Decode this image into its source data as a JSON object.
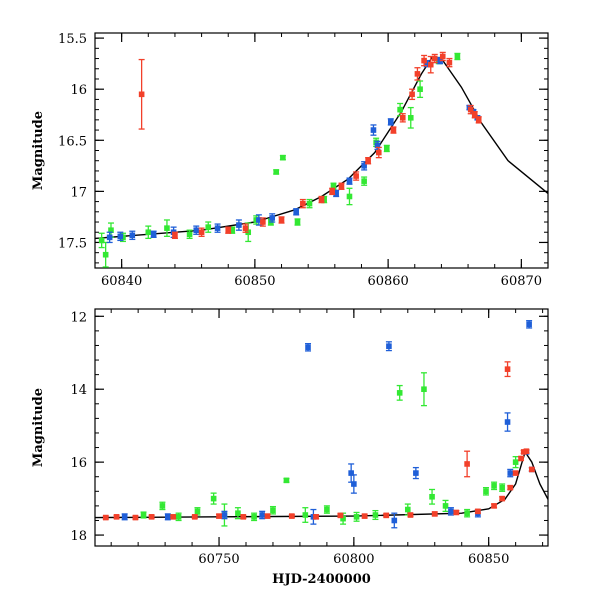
{
  "colors": {
    "green": "#33e833",
    "blue": "#1f5fd8",
    "red": "#f2402a",
    "model": "#000000"
  },
  "chart_data": [
    {
      "type": "scatter",
      "title": "",
      "xlabel": "",
      "ylabel": "Magnitude",
      "xlim": [
        60838,
        60872
      ],
      "ylim": [
        17.75,
        15.45
      ],
      "y_inverted": true,
      "xticks": [
        60840,
        60850,
        60860,
        60870
      ],
      "yticks": [
        15.5,
        16,
        16.5,
        17,
        17.5
      ],
      "xtick_labels": [
        "60840",
        "60850",
        "60860",
        "60870"
      ],
      "ytick_labels": [
        "15.5",
        "16",
        "16.5",
        "17",
        "17.5"
      ],
      "grid": false,
      "legend": "none",
      "model_curve": {
        "x": [
          60838,
          60842,
          60846,
          60850,
          60853,
          60855,
          60857,
          60859,
          60861,
          60862.5,
          60863.3,
          60864,
          60865.5,
          60867,
          60869,
          60872
        ],
        "y": [
          17.46,
          17.42,
          17.38,
          17.3,
          17.18,
          17.05,
          16.88,
          16.62,
          16.22,
          15.85,
          15.69,
          15.7,
          15.98,
          16.33,
          16.7,
          17.02
        ]
      },
      "series": [
        {
          "color": "green",
          "x": [
            60838.5,
            60838.8,
            60839.2,
            60840.1,
            60842,
            60843.4,
            60845.1,
            60846.5,
            60848.3,
            60849.5,
            60850.1,
            60851.2,
            60851.6,
            60852.1,
            60853.2,
            60854.1,
            60855.2,
            60855.9,
            60857.1,
            60858.2,
            60859.1,
            60859.9,
            60860.9,
            60861.7,
            60862.4,
            60863.8,
            60865.2
          ],
          "y": [
            17.48,
            17.62,
            17.38,
            17.45,
            17.4,
            17.36,
            17.42,
            17.35,
            17.38,
            17.4,
            17.28,
            17.3,
            16.81,
            16.67,
            17.3,
            17.12,
            17.08,
            16.95,
            17.05,
            16.9,
            16.52,
            16.58,
            16.2,
            16.28,
            16.0,
            15.72,
            15.68
          ],
          "err": [
            0.07,
            0.12,
            0.07,
            0.04,
            0.06,
            0.08,
            0.04,
            0.05,
            0.03,
            0.09,
            0.04,
            0.03,
            0.02,
            0.02,
            0.03,
            0.04,
            0.03,
            0.03,
            0.08,
            0.04,
            0.04,
            0.03,
            0.06,
            0.1,
            0.08,
            0.03,
            0.03
          ]
        },
        {
          "color": "blue",
          "x": [
            60839.1,
            60839.9,
            60840.8,
            60842.4,
            60843.9,
            60845.6,
            60847.2,
            60848.8,
            60850.3,
            60851.3,
            60853.1,
            60856.1,
            60857.1,
            60858.2,
            60858.9,
            60859.2,
            60860.2,
            60862.9,
            60863.9,
            60866.1,
            60866.4,
            60866.7
          ],
          "y": [
            17.45,
            17.44,
            17.43,
            17.42,
            17.4,
            17.38,
            17.36,
            17.33,
            17.28,
            17.26,
            17.2,
            17.02,
            16.9,
            16.75,
            16.4,
            16.55,
            16.32,
            15.75,
            15.72,
            16.18,
            16.22,
            16.28
          ],
          "err": [
            0.05,
            0.04,
            0.04,
            0.03,
            0.05,
            0.04,
            0.04,
            0.05,
            0.05,
            0.04,
            0.03,
            0.03,
            0.03,
            0.04,
            0.05,
            0.04,
            0.03,
            0.03,
            0.03,
            0.02,
            0.02,
            0.02
          ]
        },
        {
          "color": "red",
          "x": [
            60841.5,
            60844,
            60846,
            60848,
            60849.3,
            60850.6,
            60852,
            60853.6,
            60855,
            60855.8,
            60856.5,
            60857.6,
            60858.5,
            60859.3,
            60860.4,
            60861.1,
            60861.8,
            60862.2,
            60862.7,
            60863.2,
            60863.5,
            60864.1,
            60864.6,
            60866.2,
            60866.5,
            60866.8
          ],
          "y": [
            16.05,
            17.43,
            17.4,
            17.38,
            17.36,
            17.3,
            17.28,
            17.12,
            17.08,
            17.0,
            16.95,
            16.85,
            16.7,
            16.62,
            16.4,
            16.28,
            16.05,
            15.85,
            15.72,
            15.76,
            15.7,
            15.68,
            15.74,
            16.2,
            16.25,
            16.3
          ],
          "err": [
            0.34,
            0.03,
            0.04,
            0.03,
            0.04,
            0.04,
            0.03,
            0.04,
            0.03,
            0.03,
            0.03,
            0.04,
            0.03,
            0.05,
            0.03,
            0.04,
            0.05,
            0.06,
            0.05,
            0.08,
            0.04,
            0.04,
            0.04,
            0.04,
            0.03,
            0.03
          ]
        }
      ]
    },
    {
      "type": "scatter",
      "title": "",
      "xlabel": "HJD-2400000",
      "ylabel": "Magnitude",
      "xlim": [
        60704,
        60872
      ],
      "ylim": [
        18.3,
        11.8
      ],
      "y_inverted": true,
      "xticks": [
        60750,
        60800,
        60850
      ],
      "yticks": [
        12,
        14,
        16,
        18
      ],
      "xtick_labels": [
        "60750",
        "60800",
        "60850"
      ],
      "ytick_labels": [
        "12",
        "14",
        "16",
        "18"
      ],
      "grid": false,
      "legend": "none",
      "model_curve": {
        "x": [
          60704,
          60750,
          60800,
          60840,
          60850,
          60856,
          60860,
          60863.5,
          60866,
          60869,
          60872
        ],
        "y": [
          17.52,
          17.5,
          17.48,
          17.4,
          17.28,
          17.02,
          16.6,
          15.72,
          16.0,
          16.6,
          17.02
        ]
      },
      "series": [
        {
          "color": "green",
          "x": [
            60722,
            60729,
            60735,
            60742,
            60748,
            60752,
            60757,
            60763,
            60770,
            60775,
            60782,
            60790,
            60796,
            60801,
            60808,
            60817,
            60820,
            60826,
            60829,
            60834,
            60842,
            60849,
            60852,
            60855,
            60860
          ],
          "y": [
            17.45,
            17.2,
            17.5,
            17.35,
            17.0,
            17.45,
            17.4,
            17.5,
            17.32,
            16.5,
            17.45,
            17.3,
            17.55,
            17.5,
            17.45,
            14.1,
            17.3,
            14.0,
            16.95,
            17.2,
            17.4,
            16.8,
            16.65,
            16.7,
            16.0
          ],
          "err": [
            0.08,
            0.1,
            0.1,
            0.1,
            0.15,
            0.3,
            0.15,
            0.1,
            0.1,
            0.05,
            0.2,
            0.1,
            0.15,
            0.12,
            0.12,
            0.2,
            0.15,
            0.45,
            0.2,
            0.15,
            0.1,
            0.1,
            0.1,
            0.1,
            0.15
          ]
        },
        {
          "color": "blue",
          "x": [
            60715,
            60731,
            60752,
            60766,
            60783,
            60785,
            60799,
            60800,
            60813,
            60815,
            60823,
            60836,
            60846,
            60857,
            60858,
            60864,
            60865,
            60866
          ],
          "y": [
            17.5,
            17.5,
            17.45,
            17.45,
            12.85,
            17.5,
            16.3,
            16.6,
            12.82,
            17.6,
            16.3,
            17.35,
            17.4,
            14.9,
            16.3,
            15.72,
            12.22,
            16.2
          ],
          "err": [
            0.08,
            0.08,
            0.1,
            0.1,
            0.1,
            0.2,
            0.25,
            0.25,
            0.12,
            0.2,
            0.15,
            0.1,
            0.1,
            0.25,
            0.1,
            0.05,
            0.1,
            0.05
          ]
        },
        {
          "color": "red",
          "x": [
            60708,
            60712,
            60719,
            60725,
            60733,
            60741,
            60750,
            60759,
            60768,
            60777,
            60786,
            60795,
            60804,
            60812,
            60821,
            60830,
            60838,
            60842,
            60846,
            60852,
            60855,
            60857,
            60858,
            60860,
            60862,
            60863,
            60864,
            60866
          ],
          "y": [
            17.52,
            17.5,
            17.52,
            17.5,
            17.5,
            17.5,
            17.48,
            17.5,
            17.48,
            17.48,
            17.5,
            17.46,
            17.48,
            17.46,
            17.45,
            17.42,
            17.38,
            16.05,
            17.35,
            17.2,
            17.0,
            13.45,
            16.7,
            16.3,
            15.9,
            15.72,
            15.7,
            16.2
          ],
          "err": [
            0.04,
            0.04,
            0.04,
            0.04,
            0.04,
            0.04,
            0.05,
            0.04,
            0.05,
            0.04,
            0.05,
            0.04,
            0.05,
            0.04,
            0.04,
            0.05,
            0.05,
            0.35,
            0.05,
            0.05,
            0.05,
            0.2,
            0.05,
            0.05,
            0.05,
            0.04,
            0.04,
            0.04
          ]
        }
      ]
    }
  ]
}
